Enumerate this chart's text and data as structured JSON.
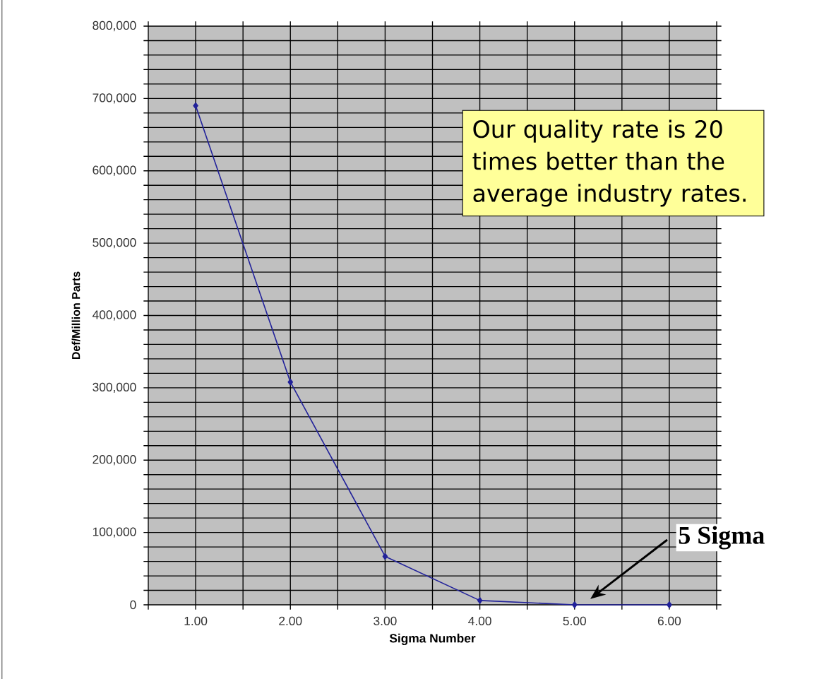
{
  "chart_data": {
    "type": "line",
    "xlabel": "Sigma Number",
    "ylabel": "Def/Million Parts",
    "categories": [
      "1.00",
      "2.00",
      "3.00",
      "4.00",
      "5.00",
      "6.00"
    ],
    "series": [
      {
        "color": "#22229a",
        "values": [
          690000,
          308000,
          67000,
          6000,
          0,
          0
        ]
      }
    ],
    "ylim": [
      0,
      800000
    ],
    "yticks": [
      0,
      {
        "value": 100000,
        "label": "100,000"
      },
      {
        "value": 200000,
        "label": "200,000"
      },
      {
        "value": 300000,
        "label": "300,000"
      },
      {
        "value": 400000,
        "label": "400,000"
      },
      {
        "value": 500000,
        "label": "500,000"
      },
      {
        "value": 600000,
        "label": "600,000"
      },
      {
        "value": 700000,
        "label": "700,000"
      },
      {
        "value": 800000,
        "label": "800,000"
      }
    ],
    "grid": true,
    "marker": "diamond",
    "line_style": "solid",
    "annotations": [
      "Our quality rate is 20 times better than the average industry rates.",
      "5 Sigma"
    ]
  }
}
